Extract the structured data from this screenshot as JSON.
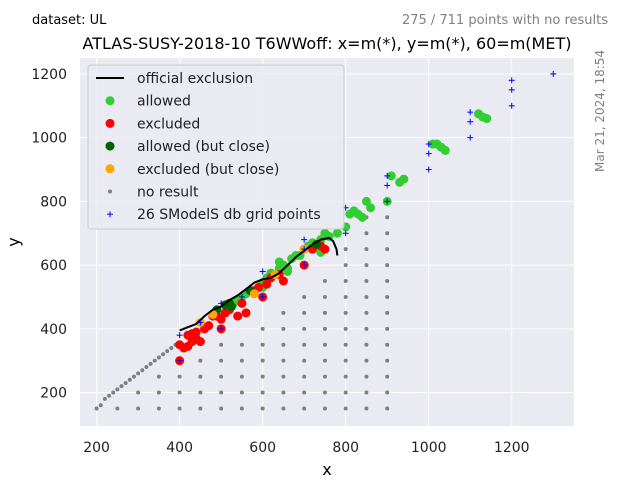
{
  "header": {
    "dataset_label": "dataset: UL",
    "points_note": "275 / 711 points with no results",
    "timestamp": "Mar 21, 2024, 18:54"
  },
  "chart_data": {
    "type": "scatter",
    "title": "ATLAS-SUSY-2018-10 T6WWoff: x=m(*), y=m(*), 60=m(MET)",
    "xlabel": "x",
    "ylabel": "y",
    "xlim": [
      160,
      1350
    ],
    "ylim": [
      95,
      1250
    ],
    "xticks": [
      200,
      400,
      600,
      800,
      1000,
      1200
    ],
    "yticks": [
      200,
      400,
      600,
      800,
      1000,
      1200
    ],
    "grid": true,
    "legend_position": "top-left",
    "colors": {
      "background": "#eaeaf2",
      "official_exclusion": "#000000",
      "allowed": "#32cd32",
      "excluded": "#ff0000",
      "allowed_close": "#006400",
      "excluded_close": "#ffa500",
      "no_result": "#808080",
      "grid_points": "#0000ff"
    },
    "legend": [
      {
        "key": "official_exclusion",
        "label": "official exclusion",
        "marker": "line"
      },
      {
        "key": "allowed",
        "label": "allowed",
        "marker": "circle"
      },
      {
        "key": "excluded",
        "label": "excluded",
        "marker": "circle"
      },
      {
        "key": "allowed_close",
        "label": "allowed (but close)",
        "marker": "circle"
      },
      {
        "key": "excluded_close",
        "label": "excluded (but close)",
        "marker": "circle"
      },
      {
        "key": "no_result",
        "label": "no result",
        "marker": "dot"
      },
      {
        "key": "grid_points",
        "label": "26 SModelS db grid points",
        "marker": "plus"
      }
    ],
    "series": {
      "official_exclusion": [
        [
          400,
          395
        ],
        [
          420,
          405
        ],
        [
          440,
          415
        ],
        [
          460,
          440
        ],
        [
          480,
          460
        ],
        [
          500,
          470
        ],
        [
          520,
          490
        ],
        [
          540,
          505
        ],
        [
          560,
          525
        ],
        [
          580,
          545
        ],
        [
          600,
          555
        ],
        [
          620,
          560
        ],
        [
          640,
          575
        ],
        [
          660,
          600
        ],
        [
          680,
          625
        ],
        [
          700,
          645
        ],
        [
          720,
          665
        ],
        [
          740,
          680
        ],
        [
          760,
          685
        ],
        [
          770,
          675
        ],
        [
          778,
          650
        ],
        [
          780,
          630
        ]
      ],
      "allowed": [
        [
          600,
          545
        ],
        [
          610,
          560
        ],
        [
          620,
          575
        ],
        [
          640,
          590
        ],
        [
          650,
          600
        ],
        [
          660,
          590
        ],
        [
          670,
          620
        ],
        [
          680,
          630
        ],
        [
          690,
          630
        ],
        [
          700,
          650
        ],
        [
          710,
          660
        ],
        [
          720,
          670
        ],
        [
          730,
          665
        ],
        [
          740,
          680
        ],
        [
          750,
          700
        ],
        [
          760,
          690
        ],
        [
          780,
          700
        ],
        [
          800,
          720
        ],
        [
          810,
          760
        ],
        [
          820,
          770
        ],
        [
          830,
          760
        ],
        [
          840,
          750
        ],
        [
          850,
          800
        ],
        [
          860,
          780
        ],
        [
          900,
          800
        ],
        [
          910,
          880
        ],
        [
          930,
          860
        ],
        [
          940,
          870
        ],
        [
          1010,
          980
        ],
        [
          1020,
          980
        ],
        [
          1030,
          970
        ],
        [
          1040,
          960
        ],
        [
          1120,
          1075
        ],
        [
          1130,
          1065
        ],
        [
          1140,
          1060
        ],
        [
          520,
          470
        ],
        [
          530,
          480
        ],
        [
          540,
          490
        ],
        [
          550,
          500
        ],
        [
          560,
          510
        ],
        [
          580,
          520
        ],
        [
          600,
          530
        ],
        [
          640,
          610
        ],
        [
          660,
          580
        ],
        [
          720,
          650
        ],
        [
          740,
          640
        ]
      ],
      "excluded": [
        [
          400,
          300
        ],
        [
          400,
          350
        ],
        [
          410,
          340
        ],
        [
          420,
          380
        ],
        [
          430,
          385
        ],
        [
          440,
          370
        ],
        [
          450,
          360
        ],
        [
          460,
          400
        ],
        [
          470,
          410
        ],
        [
          480,
          440
        ],
        [
          490,
          440
        ],
        [
          500,
          400
        ],
        [
          500,
          430
        ],
        [
          510,
          450
        ],
        [
          520,
          460
        ],
        [
          540,
          440
        ],
        [
          550,
          480
        ],
        [
          560,
          450
        ],
        [
          580,
          520
        ],
        [
          590,
          530
        ],
        [
          600,
          500
        ],
        [
          610,
          540
        ],
        [
          620,
          560
        ],
        [
          640,
          570
        ],
        [
          650,
          550
        ],
        [
          700,
          600
        ],
        [
          720,
          650
        ],
        [
          740,
          660
        ],
        [
          750,
          650
        ],
        [
          420,
          345
        ],
        [
          440,
          390
        ],
        [
          430,
          360
        ]
      ],
      "allowed_close": [
        [
          490,
          460
        ],
        [
          510,
          475
        ],
        [
          520,
          480
        ],
        [
          525,
          470
        ],
        [
          570,
          520
        ],
        [
          730,
          665
        ]
      ],
      "excluded_close": [
        [
          450,
          420
        ],
        [
          480,
          445
        ],
        [
          580,
          510
        ],
        [
          630,
          570
        ],
        [
          700,
          650
        ]
      ],
      "no_result": [
        [
          200,
          150
        ],
        [
          210,
          160
        ],
        [
          220,
          180
        ],
        [
          230,
          190
        ],
        [
          240,
          200
        ],
        [
          250,
          210
        ],
        [
          260,
          220
        ],
        [
          270,
          230
        ],
        [
          280,
          240
        ],
        [
          290,
          250
        ],
        [
          300,
          260
        ],
        [
          310,
          270
        ],
        [
          320,
          280
        ],
        [
          330,
          290
        ],
        [
          340,
          300
        ],
        [
          350,
          310
        ],
        [
          360,
          320
        ],
        [
          370,
          330
        ],
        [
          380,
          340
        ],
        [
          390,
          350
        ],
        [
          250,
          150
        ],
        [
          300,
          150
        ],
        [
          350,
          150
        ],
        [
          400,
          150
        ],
        [
          450,
          150
        ],
        [
          500,
          150
        ],
        [
          550,
          150
        ],
        [
          600,
          150
        ],
        [
          650,
          150
        ],
        [
          700,
          150
        ],
        [
          750,
          150
        ],
        [
          800,
          150
        ],
        [
          850,
          150
        ],
        [
          900,
          150
        ],
        [
          300,
          200
        ],
        [
          350,
          200
        ],
        [
          400,
          200
        ],
        [
          450,
          200
        ],
        [
          500,
          200
        ],
        [
          550,
          200
        ],
        [
          600,
          200
        ],
        [
          650,
          200
        ],
        [
          700,
          200
        ],
        [
          750,
          200
        ],
        [
          800,
          200
        ],
        [
          850,
          200
        ],
        [
          900,
          200
        ],
        [
          350,
          250
        ],
        [
          400,
          250
        ],
        [
          450,
          250
        ],
        [
          500,
          250
        ],
        [
          550,
          250
        ],
        [
          600,
          250
        ],
        [
          650,
          250
        ],
        [
          700,
          250
        ],
        [
          750,
          250
        ],
        [
          800,
          250
        ],
        [
          850,
          250
        ],
        [
          900,
          250
        ],
        [
          450,
          300
        ],
        [
          500,
          300
        ],
        [
          550,
          300
        ],
        [
          600,
          300
        ],
        [
          650,
          300
        ],
        [
          700,
          300
        ],
        [
          750,
          300
        ],
        [
          800,
          300
        ],
        [
          850,
          300
        ],
        [
          900,
          300
        ],
        [
          500,
          350
        ],
        [
          550,
          350
        ],
        [
          600,
          350
        ],
        [
          650,
          350
        ],
        [
          700,
          350
        ],
        [
          750,
          350
        ],
        [
          800,
          350
        ],
        [
          850,
          350
        ],
        [
          900,
          350
        ],
        [
          600,
          400
        ],
        [
          650,
          400
        ],
        [
          700,
          400
        ],
        [
          750,
          400
        ],
        [
          800,
          400
        ],
        [
          850,
          400
        ],
        [
          900,
          400
        ],
        [
          650,
          450
        ],
        [
          700,
          450
        ],
        [
          750,
          450
        ],
        [
          800,
          450
        ],
        [
          850,
          450
        ],
        [
          900,
          450
        ],
        [
          700,
          500
        ],
        [
          750,
          500
        ],
        [
          800,
          500
        ],
        [
          850,
          500
        ],
        [
          900,
          500
        ],
        [
          750,
          550
        ],
        [
          800,
          550
        ],
        [
          850,
          550
        ],
        [
          900,
          550
        ],
        [
          800,
          600
        ],
        [
          850,
          600
        ],
        [
          900,
          600
        ],
        [
          800,
          650
        ],
        [
          850,
          650
        ],
        [
          900,
          650
        ],
        [
          850,
          700
        ],
        [
          900,
          700
        ],
        [
          850,
          750
        ],
        [
          900,
          750
        ]
      ],
      "grid_points": [
        [
          400,
          300
        ],
        [
          400,
          380
        ],
        [
          500,
          400
        ],
        [
          500,
          480
        ],
        [
          600,
          500
        ],
        [
          600,
          580
        ],
        [
          700,
          600
        ],
        [
          700,
          650
        ],
        [
          700,
          680
        ],
        [
          800,
          700
        ],
        [
          800,
          780
        ],
        [
          900,
          800
        ],
        [
          900,
          850
        ],
        [
          900,
          880
        ],
        [
          1000,
          900
        ],
        [
          1000,
          950
        ],
        [
          1000,
          980
        ],
        [
          1100,
          1000
        ],
        [
          1100,
          1050
        ],
        [
          1100,
          1080
        ],
        [
          1200,
          1100
        ],
        [
          1200,
          1150
        ],
        [
          1200,
          1180
        ],
        [
          1300,
          1200
        ],
        [
          450,
          420
        ],
        [
          550,
          500
        ]
      ]
    }
  }
}
